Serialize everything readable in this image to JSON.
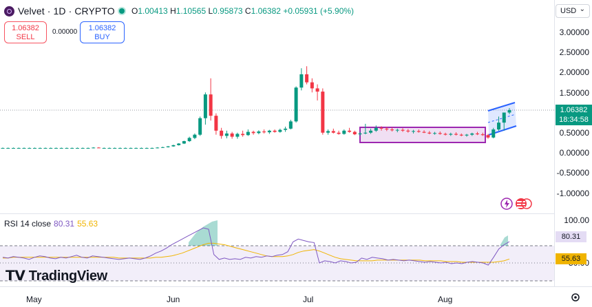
{
  "header": {
    "symbol": "Velvet · 1D · CRYPTO",
    "ohlc": {
      "o_label": "O",
      "o": "1.00413",
      "h_label": "H",
      "h": "1.10565",
      "l_label": "L",
      "l": "0.95873",
      "c_label": "C",
      "c": "1.06382",
      "change": "+0.05931 (+5.90%)"
    },
    "currency": "USD"
  },
  "trade": {
    "sell_price": "1.06382",
    "sell_label": "SELL",
    "spread": "0.00000",
    "buy_price": "1.06382",
    "buy_label": "BUY"
  },
  "price_axis": {
    "ticks": [
      "3.00000",
      "2.50000",
      "2.00000",
      "1.50000",
      "1.00000",
      "0.50000",
      "0.00000",
      "-0.50000",
      "-1.00000"
    ],
    "last_price": "1.06382",
    "countdown": "18:34:58"
  },
  "rsi": {
    "label": "RSI 14 close",
    "value": "80.31",
    "ma_value": "55.63",
    "ticks": [
      "100.00",
      "50.00"
    ]
  },
  "time_axis": {
    "ticks": [
      "May",
      "Jun",
      "Jul",
      "Aug"
    ]
  },
  "branding": {
    "name": "TradingView"
  },
  "colors": {
    "up": "#089981",
    "down": "#f23645",
    "rsi": "#7e57c2",
    "rsi_ma": "#f0b400",
    "box": "#9c27b0",
    "channel": "#2962ff"
  },
  "chart_data": {
    "type": "candlestick",
    "price_ylim": [
      -1.0,
      3.0
    ],
    "candles": [
      {
        "o": 0.12,
        "h": 0.13,
        "l": 0.11,
        "c": 0.12
      },
      {
        "o": 0.12,
        "h": 0.13,
        "l": 0.11,
        "c": 0.12
      },
      {
        "o": 0.12,
        "h": 0.13,
        "l": 0.11,
        "c": 0.12
      },
      {
        "o": 0.12,
        "h": 0.13,
        "l": 0.11,
        "c": 0.12
      },
      {
        "o": 0.12,
        "h": 0.13,
        "l": 0.11,
        "c": 0.12
      },
      {
        "o": 0.12,
        "h": 0.13,
        "l": 0.11,
        "c": 0.12
      },
      {
        "o": 0.12,
        "h": 0.13,
        "l": 0.11,
        "c": 0.12
      },
      {
        "o": 0.12,
        "h": 0.13,
        "l": 0.11,
        "c": 0.12
      },
      {
        "o": 0.12,
        "h": 0.13,
        "l": 0.11,
        "c": 0.12
      },
      {
        "o": 0.12,
        "h": 0.13,
        "l": 0.11,
        "c": 0.12
      },
      {
        "o": 0.12,
        "h": 0.13,
        "l": 0.11,
        "c": 0.12
      },
      {
        "o": 0.12,
        "h": 0.13,
        "l": 0.11,
        "c": 0.12
      },
      {
        "o": 0.12,
        "h": 0.13,
        "l": 0.11,
        "c": 0.12
      },
      {
        "o": 0.12,
        "h": 0.13,
        "l": 0.11,
        "c": 0.12
      },
      {
        "o": 0.12,
        "h": 0.13,
        "l": 0.11,
        "c": 0.12
      },
      {
        "o": 0.12,
        "h": 0.13,
        "l": 0.11,
        "c": 0.12
      },
      {
        "o": 0.12,
        "h": 0.13,
        "l": 0.11,
        "c": 0.12
      },
      {
        "o": 0.12,
        "h": 0.14,
        "l": 0.11,
        "c": 0.13
      },
      {
        "o": 0.13,
        "h": 0.14,
        "l": 0.12,
        "c": 0.12
      },
      {
        "o": 0.12,
        "h": 0.13,
        "l": 0.11,
        "c": 0.12
      },
      {
        "o": 0.12,
        "h": 0.13,
        "l": 0.11,
        "c": 0.12
      },
      {
        "o": 0.12,
        "h": 0.13,
        "l": 0.11,
        "c": 0.12
      },
      {
        "o": 0.12,
        "h": 0.13,
        "l": 0.11,
        "c": 0.12
      },
      {
        "o": 0.12,
        "h": 0.13,
        "l": 0.11,
        "c": 0.12
      },
      {
        "o": 0.12,
        "h": 0.13,
        "l": 0.11,
        "c": 0.12
      },
      {
        "o": 0.12,
        "h": 0.13,
        "l": 0.11,
        "c": 0.12
      },
      {
        "o": 0.12,
        "h": 0.13,
        "l": 0.11,
        "c": 0.12
      },
      {
        "o": 0.12,
        "h": 0.13,
        "l": 0.11,
        "c": 0.12
      },
      {
        "o": 0.12,
        "h": 0.13,
        "l": 0.11,
        "c": 0.12
      },
      {
        "o": 0.12,
        "h": 0.14,
        "l": 0.11,
        "c": 0.13
      },
      {
        "o": 0.13,
        "h": 0.15,
        "l": 0.12,
        "c": 0.14
      },
      {
        "o": 0.14,
        "h": 0.17,
        "l": 0.13,
        "c": 0.16
      },
      {
        "o": 0.16,
        "h": 0.2,
        "l": 0.15,
        "c": 0.19
      },
      {
        "o": 0.19,
        "h": 0.24,
        "l": 0.18,
        "c": 0.23
      },
      {
        "o": 0.23,
        "h": 0.3,
        "l": 0.22,
        "c": 0.29
      },
      {
        "o": 0.29,
        "h": 0.4,
        "l": 0.27,
        "c": 0.37
      },
      {
        "o": 0.37,
        "h": 0.48,
        "l": 0.34,
        "c": 0.45
      },
      {
        "o": 0.45,
        "h": 0.9,
        "l": 0.42,
        "c": 0.86
      },
      {
        "o": 0.86,
        "h": 1.5,
        "l": 0.7,
        "c": 1.45
      },
      {
        "o": 1.45,
        "h": 1.85,
        "l": 0.8,
        "c": 0.92
      },
      {
        "o": 0.92,
        "h": 0.98,
        "l": 0.45,
        "c": 0.55
      },
      {
        "o": 0.55,
        "h": 0.62,
        "l": 0.35,
        "c": 0.42
      },
      {
        "o": 0.42,
        "h": 0.55,
        "l": 0.36,
        "c": 0.48
      },
      {
        "o": 0.48,
        "h": 0.52,
        "l": 0.35,
        "c": 0.4
      },
      {
        "o": 0.4,
        "h": 0.5,
        "l": 0.35,
        "c": 0.47
      },
      {
        "o": 0.47,
        "h": 0.55,
        "l": 0.4,
        "c": 0.44
      },
      {
        "o": 0.44,
        "h": 0.58,
        "l": 0.42,
        "c": 0.52
      },
      {
        "o": 0.52,
        "h": 0.55,
        "l": 0.45,
        "c": 0.49
      },
      {
        "o": 0.49,
        "h": 0.56,
        "l": 0.46,
        "c": 0.53
      },
      {
        "o": 0.53,
        "h": 0.58,
        "l": 0.48,
        "c": 0.51
      },
      {
        "o": 0.51,
        "h": 0.57,
        "l": 0.47,
        "c": 0.55
      },
      {
        "o": 0.55,
        "h": 0.58,
        "l": 0.5,
        "c": 0.52
      },
      {
        "o": 0.52,
        "h": 0.6,
        "l": 0.5,
        "c": 0.57
      },
      {
        "o": 0.57,
        "h": 0.65,
        "l": 0.52,
        "c": 0.6
      },
      {
        "o": 0.6,
        "h": 0.82,
        "l": 0.58,
        "c": 0.78
      },
      {
        "o": 0.78,
        "h": 1.65,
        "l": 0.75,
        "c": 1.62
      },
      {
        "o": 1.62,
        "h": 2.1,
        "l": 1.55,
        "c": 1.95
      },
      {
        "o": 1.95,
        "h": 2.15,
        "l": 1.7,
        "c": 1.75
      },
      {
        "o": 1.75,
        "h": 1.85,
        "l": 1.5,
        "c": 1.6
      },
      {
        "o": 1.6,
        "h": 1.7,
        "l": 1.3,
        "c": 1.52
      },
      {
        "o": 1.52,
        "h": 1.6,
        "l": 0.45,
        "c": 0.5
      },
      {
        "o": 0.5,
        "h": 0.58,
        "l": 0.45,
        "c": 0.54
      },
      {
        "o": 0.54,
        "h": 0.6,
        "l": 0.48,
        "c": 0.5
      },
      {
        "o": 0.5,
        "h": 0.55,
        "l": 0.45,
        "c": 0.47
      },
      {
        "o": 0.47,
        "h": 0.58,
        "l": 0.45,
        "c": 0.55
      },
      {
        "o": 0.55,
        "h": 0.62,
        "l": 0.5,
        "c": 0.52
      },
      {
        "o": 0.52,
        "h": 0.55,
        "l": 0.44,
        "c": 0.46
      },
      {
        "o": 0.46,
        "h": 0.52,
        "l": 0.42,
        "c": 0.48
      },
      {
        "o": 0.48,
        "h": 0.72,
        "l": 0.46,
        "c": 0.5
      },
      {
        "o": 0.5,
        "h": 0.6,
        "l": 0.47,
        "c": 0.55
      },
      {
        "o": 0.55,
        "h": 0.68,
        "l": 0.52,
        "c": 0.62
      },
      {
        "o": 0.62,
        "h": 0.66,
        "l": 0.55,
        "c": 0.6
      },
      {
        "o": 0.6,
        "h": 0.64,
        "l": 0.54,
        "c": 0.58
      },
      {
        "o": 0.58,
        "h": 0.63,
        "l": 0.53,
        "c": 0.56
      },
      {
        "o": 0.56,
        "h": 0.6,
        "l": 0.51,
        "c": 0.57
      },
      {
        "o": 0.57,
        "h": 0.61,
        "l": 0.52,
        "c": 0.55
      },
      {
        "o": 0.55,
        "h": 0.59,
        "l": 0.5,
        "c": 0.53
      },
      {
        "o": 0.53,
        "h": 0.57,
        "l": 0.48,
        "c": 0.54
      },
      {
        "o": 0.54,
        "h": 0.58,
        "l": 0.5,
        "c": 0.52
      },
      {
        "o": 0.52,
        "h": 0.56,
        "l": 0.49,
        "c": 0.5
      },
      {
        "o": 0.5,
        "h": 0.54,
        "l": 0.46,
        "c": 0.48
      },
      {
        "o": 0.48,
        "h": 0.52,
        "l": 0.45,
        "c": 0.49
      },
      {
        "o": 0.49,
        "h": 0.53,
        "l": 0.45,
        "c": 0.47
      },
      {
        "o": 0.47,
        "h": 0.5,
        "l": 0.43,
        "c": 0.45
      },
      {
        "o": 0.45,
        "h": 0.5,
        "l": 0.42,
        "c": 0.47
      },
      {
        "o": 0.47,
        "h": 0.51,
        "l": 0.43,
        "c": 0.45
      },
      {
        "o": 0.45,
        "h": 0.48,
        "l": 0.41,
        "c": 0.43
      },
      {
        "o": 0.43,
        "h": 0.47,
        "l": 0.4,
        "c": 0.45
      },
      {
        "o": 0.45,
        "h": 0.5,
        "l": 0.42,
        "c": 0.48
      },
      {
        "o": 0.48,
        "h": 0.52,
        "l": 0.44,
        "c": 0.46
      },
      {
        "o": 0.46,
        "h": 0.5,
        "l": 0.42,
        "c": 0.44
      },
      {
        "o": 0.44,
        "h": 0.47,
        "l": 0.35,
        "c": 0.38
      },
      {
        "o": 0.38,
        "h": 0.62,
        "l": 0.36,
        "c": 0.58
      },
      {
        "o": 0.58,
        "h": 0.9,
        "l": 0.55,
        "c": 0.75
      },
      {
        "o": 0.75,
        "h": 1.0,
        "l": 0.55,
        "c": 1.0
      },
      {
        "o": 1.0,
        "h": 1.11,
        "l": 0.96,
        "c": 1.06
      }
    ],
    "rsi_ylim": [
      30,
      100
    ],
    "rsi_series": [
      58,
      57,
      59,
      58,
      57,
      55,
      58,
      60,
      59,
      57,
      56,
      58,
      57,
      59,
      61,
      58,
      57,
      60,
      59,
      58,
      57,
      56,
      55,
      56,
      57,
      56,
      55,
      57,
      60,
      64,
      67,
      71,
      76,
      80,
      84,
      88,
      92,
      96,
      100,
      98,
      62,
      55,
      57,
      55,
      56,
      55,
      58,
      57,
      59,
      58,
      60,
      59,
      61,
      62,
      66,
      80,
      84,
      82,
      80,
      79,
      50,
      53,
      52,
      50,
      53,
      52,
      50,
      51,
      57,
      55,
      58,
      57,
      56,
      54,
      55,
      54,
      53,
      54,
      53,
      52,
      51,
      52,
      51,
      50,
      51,
      49,
      50,
      49,
      51,
      52,
      51,
      50,
      47,
      58,
      70,
      76,
      80.31
    ],
    "rsi_ma_series": [
      57,
      57,
      58,
      58,
      58,
      58,
      58,
      58,
      58,
      58,
      58,
      58,
      58,
      58,
      58,
      58,
      58,
      58,
      58,
      58,
      58,
      58,
      57,
      57,
      57,
      57,
      57,
      57,
      57,
      58,
      58,
      59,
      60,
      62,
      64,
      67,
      70,
      73,
      76,
      78,
      78,
      77,
      76,
      74,
      72,
      70,
      68,
      66,
      64,
      62,
      60,
      59,
      59,
      59,
      60,
      62,
      65,
      67,
      68,
      69,
      67,
      64,
      61,
      58,
      56,
      55,
      54,
      53,
      53,
      53,
      53,
      54,
      54,
      54,
      54,
      54,
      54,
      54,
      54,
      54,
      53,
      53,
      53,
      53,
      52,
      52,
      52,
      51,
      51,
      51,
      51,
      51,
      51,
      51,
      52,
      53,
      55.63
    ]
  }
}
